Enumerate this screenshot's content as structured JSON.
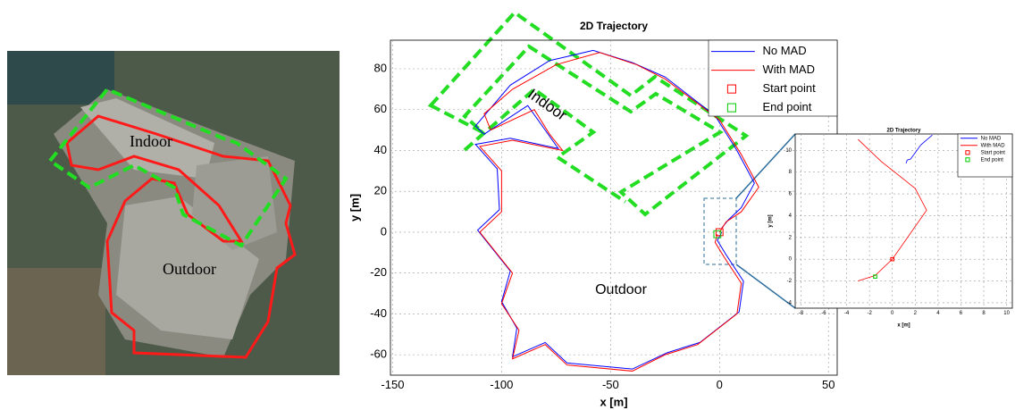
{
  "photo_labels": [
    "Indoor",
    "Outdoor"
  ],
  "chart_data": [
    {
      "type": "line",
      "title": "2D Trajectory",
      "xlabel": "x [m]",
      "ylabel": "y [m]",
      "xlim": [
        -151,
        54
      ],
      "ylim": [
        -70,
        94
      ],
      "xticks": [
        -150,
        -100,
        -50,
        0,
        50
      ],
      "yticks": [
        -60,
        -40,
        -20,
        0,
        20,
        40,
        60,
        80
      ],
      "grid": true,
      "legend": "upper right",
      "annotations": [
        {
          "text": "Indoor"
        },
        {
          "text": "Outdoor"
        }
      ],
      "series": [
        {
          "name": "No MAD",
          "color": "#0000ff",
          "x": [
            1,
            4,
            10,
            16,
            8,
            -2,
            -25,
            -40,
            -58,
            -78,
            -96,
            -112,
            -108,
            -88,
            -80,
            -74,
            -96,
            -112,
            -102,
            -101,
            -111,
            -96,
            -100,
            -93,
            -95,
            -80,
            -70,
            -40,
            -24,
            -9,
            9,
            11,
            3,
            -1,
            1
          ],
          "values": [
            2,
            6,
            12,
            24,
            40,
            57,
            76,
            83,
            89,
            84,
            72,
            52,
            48,
            62,
            50,
            41,
            46,
            43,
            31,
            11,
            1,
            -19,
            -34,
            -47,
            -61,
            -54,
            -64,
            -67,
            -59,
            -54,
            -39,
            -24,
            -11,
            -4,
            0
          ]
        },
        {
          "name": "With MAD",
          "color": "#ff0000",
          "x": [
            0,
            3,
            10,
            18,
            10,
            0,
            -25,
            -38,
            -55,
            -75,
            -95,
            -108,
            -105,
            -85,
            -78,
            -72,
            -95,
            -110,
            -100,
            -100,
            -110,
            -95,
            -100,
            -92,
            -95,
            -80,
            -70,
            -40,
            -25,
            -10,
            8,
            10,
            2,
            -2,
            -1
          ],
          "values": [
            0,
            5,
            10,
            22,
            38,
            55,
            75,
            82,
            88,
            82,
            70,
            58,
            50,
            60,
            48,
            40,
            45,
            42,
            30,
            10,
            0,
            -20,
            -35,
            -48,
            -62,
            -55,
            -65,
            -68,
            -60,
            -55,
            -40,
            -25,
            -12,
            -5,
            -1
          ]
        },
        {
          "name": "Start point",
          "color": "#ff0000",
          "marker": "square",
          "x": [
            0
          ],
          "values": [
            0
          ]
        },
        {
          "name": "End point",
          "color": "#00cc00",
          "marker": "square",
          "x": [
            -1
          ],
          "values": [
            -1
          ]
        }
      ]
    },
    {
      "type": "line",
      "title": "2D Trajectory",
      "xlabel": "x [m]",
      "ylabel": "y [m]",
      "xlim": [
        -8.5,
        10.5
      ],
      "ylim": [
        -4.5,
        11.5
      ],
      "xticks": [
        -8,
        -6,
        -4,
        -2,
        0,
        2,
        4,
        6,
        8,
        10
      ],
      "yticks": [
        -4,
        -2,
        0,
        2,
        4,
        6,
        8,
        10
      ],
      "grid": true,
      "legend": "upper right",
      "series": [
        {
          "name": "No MAD",
          "color": "#0000ff",
          "x": [
            1.2,
            1.3,
            1.6,
            2.5,
            3.5
          ],
          "values": [
            8.8,
            9.1,
            9.2,
            10.5,
            11.4
          ]
        },
        {
          "name": "With MAD",
          "color": "#ff0000",
          "x": [
            -3,
            -1.5,
            0,
            3,
            2,
            -1,
            -3
          ],
          "values": [
            -2,
            -1.5,
            0,
            4.5,
            6.5,
            9,
            11
          ]
        },
        {
          "name": "Start point",
          "color": "#ff0000",
          "marker": "square",
          "x": [
            0
          ],
          "values": [
            0
          ]
        },
        {
          "name": "End point",
          "color": "#00cc00",
          "marker": "square",
          "x": [
            -1.5
          ],
          "values": [
            -1.6
          ]
        }
      ]
    }
  ]
}
